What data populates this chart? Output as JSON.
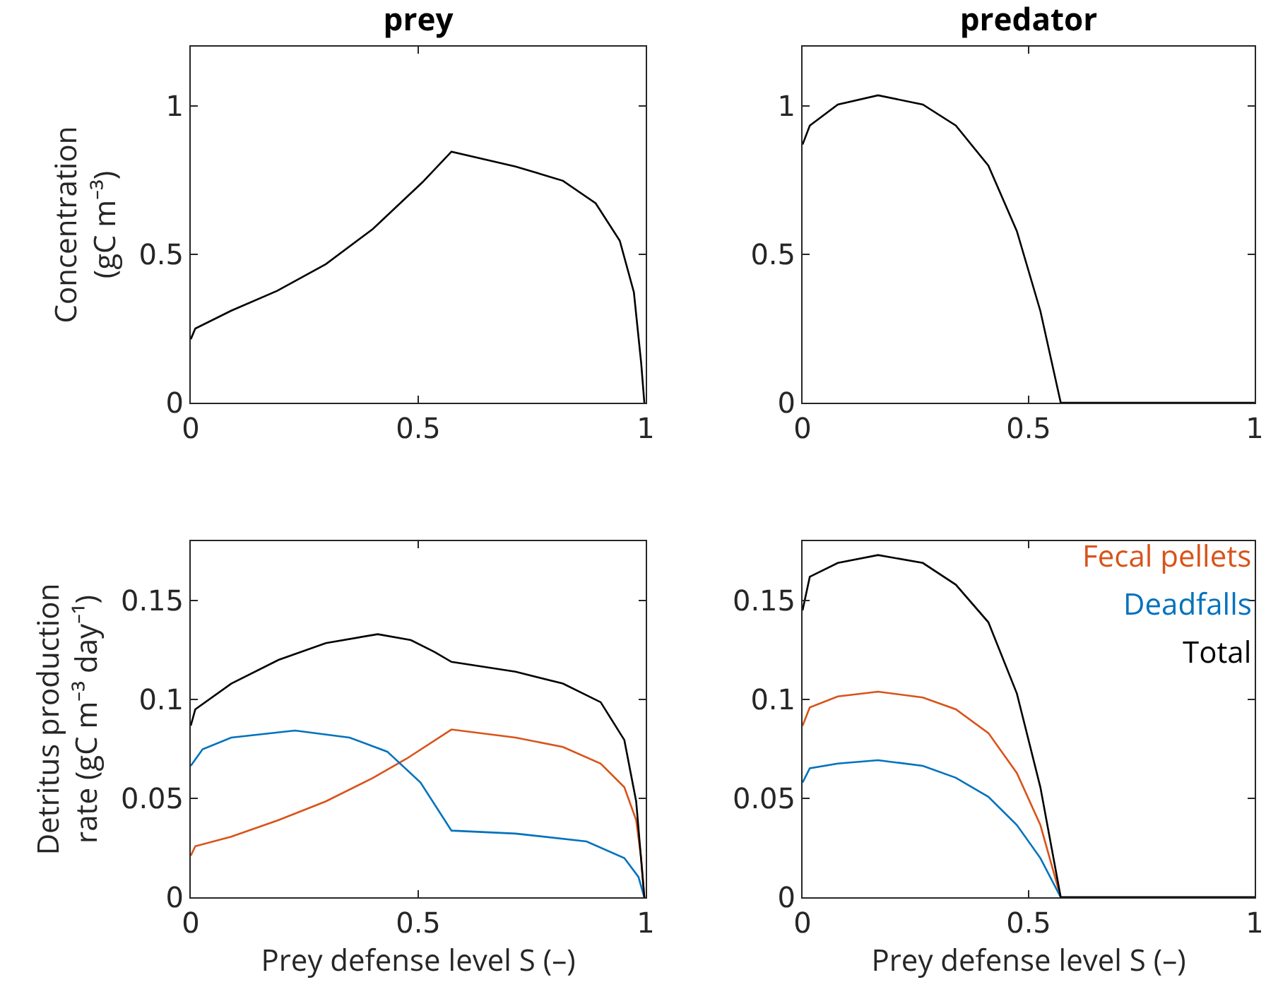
{
  "chart_data": [
    {
      "type": "line",
      "title": "prey",
      "ylabel": "Concentration\n(gC m⁻³)",
      "xlim": [
        0,
        1
      ],
      "xticks": [
        0,
        0.5,
        1
      ],
      "ylim": [
        0,
        1.2
      ],
      "yticks": [
        0,
        0.5,
        1
      ],
      "series": [
        {
          "color": "#000000",
          "x": [
            0,
            0.01,
            0.089,
            0.19,
            0.297,
            0.4,
            0.51,
            0.573,
            0.714,
            0.818,
            0.89,
            0.943,
            0.974,
            0.99,
            0.997
          ],
          "values": [
            0.214,
            0.25,
            0.31,
            0.377,
            0.467,
            0.585,
            0.744,
            0.846,
            0.796,
            0.748,
            0.672,
            0.546,
            0.372,
            0.134,
            0
          ]
        }
      ]
    },
    {
      "type": "line",
      "title": "predator",
      "xlim": [
        0,
        1
      ],
      "xticks": [
        0,
        0.5,
        1
      ],
      "ylim": [
        0,
        1.2
      ],
      "yticks": [
        0,
        0.5,
        1
      ],
      "series": [
        {
          "color": "#000000",
          "x": [
            0,
            0.016,
            0.078,
            0.167,
            0.266,
            0.339,
            0.411,
            0.474,
            0.526,
            0.571,
            1
          ],
          "values": [
            0.87,
            0.934,
            1.005,
            1.036,
            1.005,
            0.934,
            0.799,
            0.578,
            0.309,
            0,
            0
          ]
        }
      ]
    },
    {
      "type": "line",
      "xlabel": "Prey defense level S (–)",
      "ylabel": "Detritus production\nrate (gC m⁻³ day⁻¹)",
      "xlim": [
        0,
        1
      ],
      "xticks": [
        0,
        0.5,
        1
      ],
      "ylim": [
        0,
        0.18
      ],
      "yticks": [
        0,
        0.05,
        0.1,
        0.15
      ],
      "series": [
        {
          "color": "#d95319",
          "x": [
            0,
            0.01,
            0.089,
            0.193,
            0.297,
            0.401,
            0.474,
            0.573,
            0.714,
            0.818,
            0.901,
            0.953,
            0.979,
            0.99,
            0.997
          ],
          "values": [
            0.021,
            0.0258,
            0.0306,
            0.039,
            0.0485,
            0.0604,
            0.07,
            0.0848,
            0.0807,
            0.076,
            0.0676,
            0.0556,
            0.039,
            0.0198,
            0
          ]
        },
        {
          "color": "#0072bd",
          "x": [
            0,
            0.026,
            0.089,
            0.229,
            0.349,
            0.432,
            0.505,
            0.573,
            0.714,
            0.87,
            0.953,
            0.984,
            0.997
          ],
          "values": [
            0.0664,
            0.0748,
            0.0807,
            0.0843,
            0.0807,
            0.0736,
            0.058,
            0.0337,
            0.0322,
            0.0282,
            0.0198,
            0.0103,
            0
          ]
        },
        {
          "color": "#000000",
          "x": [
            0,
            0.01,
            0.089,
            0.193,
            0.297,
            0.411,
            0.484,
            0.536,
            0.573,
            0.714,
            0.818,
            0.901,
            0.953,
            0.979,
            0.997
          ],
          "values": [
            0.0867,
            0.095,
            0.108,
            0.12,
            0.1285,
            0.133,
            0.13,
            0.124,
            0.119,
            0.114,
            0.108,
            0.0986,
            0.0795,
            0.0485,
            0
          ]
        }
      ]
    },
    {
      "type": "line",
      "xlabel": "Prey defense level S (–)",
      "xlim": [
        0,
        1
      ],
      "xticks": [
        0,
        0.5,
        1
      ],
      "ylim": [
        0,
        0.18
      ],
      "yticks": [
        0,
        0.05,
        0.1,
        0.15
      ],
      "legend": "top right",
      "series": [
        {
          "name": "Fecal pellets",
          "color": "#d95319",
          "x": [
            0,
            0.016,
            0.078,
            0.167,
            0.266,
            0.339,
            0.411,
            0.474,
            0.526,
            0.571,
            1
          ],
          "values": [
            0.0867,
            0.096,
            0.1015,
            0.1039,
            0.101,
            0.095,
            0.083,
            0.0628,
            0.0365,
            0,
            0
          ]
        },
        {
          "name": "Deadfalls",
          "color": "#0072bd",
          "x": [
            0,
            0.016,
            0.078,
            0.167,
            0.266,
            0.339,
            0.411,
            0.474,
            0.526,
            0.571,
            1
          ],
          "values": [
            0.058,
            0.0652,
            0.0676,
            0.0693,
            0.0664,
            0.0604,
            0.0508,
            0.0365,
            0.0198,
            0,
            0
          ]
        },
        {
          "name": "Total",
          "color": "#000000",
          "x": [
            0,
            0.016,
            0.078,
            0.167,
            0.266,
            0.339,
            0.411,
            0.474,
            0.526,
            0.571,
            1
          ],
          "values": [
            0.145,
            0.162,
            0.169,
            0.173,
            0.169,
            0.158,
            0.139,
            0.103,
            0.0556,
            0,
            0
          ]
        }
      ]
    }
  ]
}
